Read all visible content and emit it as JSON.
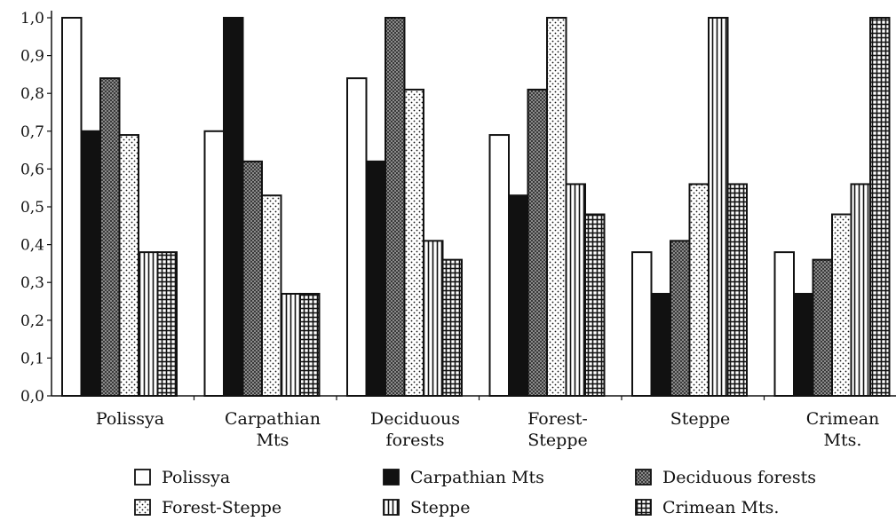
{
  "chart_data": {
    "type": "bar",
    "categories": [
      [
        "Polissya"
      ],
      [
        "Carpathian",
        "Mts"
      ],
      [
        "Deciduous",
        "forests"
      ],
      [
        "Forest-",
        "Steppe"
      ],
      [
        "Steppe"
      ],
      [
        "Crimean",
        "Mts."
      ]
    ],
    "series": [
      {
        "name": "Polissya",
        "pattern": "white",
        "values": [
          1.0,
          0.7,
          0.84,
          0.69,
          0.38,
          0.38
        ]
      },
      {
        "name": "Carpathian Mts",
        "pattern": "black",
        "values": [
          0.7,
          1.0,
          0.62,
          0.53,
          0.27,
          0.27
        ]
      },
      {
        "name": "Deciduous forests",
        "pattern": "crosshatch",
        "values": [
          0.84,
          0.62,
          1.0,
          0.81,
          0.41,
          0.36
        ]
      },
      {
        "name": "Forest-Steppe",
        "pattern": "dots",
        "values": [
          0.69,
          0.53,
          0.81,
          1.0,
          0.56,
          0.48
        ]
      },
      {
        "name": "Steppe",
        "pattern": "vertical-lines",
        "values": [
          0.38,
          0.27,
          0.41,
          0.56,
          1.0,
          0.56
        ]
      },
      {
        "name": "Crimean Mts.",
        "pattern": "grid",
        "values": [
          0.38,
          0.27,
          0.36,
          0.48,
          0.56,
          1.0
        ]
      }
    ],
    "ylim": [
      0,
      1.0
    ],
    "yticks": [
      "0,0",
      "0,1",
      "0,2",
      "0,3",
      "0,4",
      "0,5",
      "0,6",
      "0,7",
      "0,8",
      "0,9",
      "1,0"
    ],
    "legend_position": "bottom",
    "grid": false
  }
}
